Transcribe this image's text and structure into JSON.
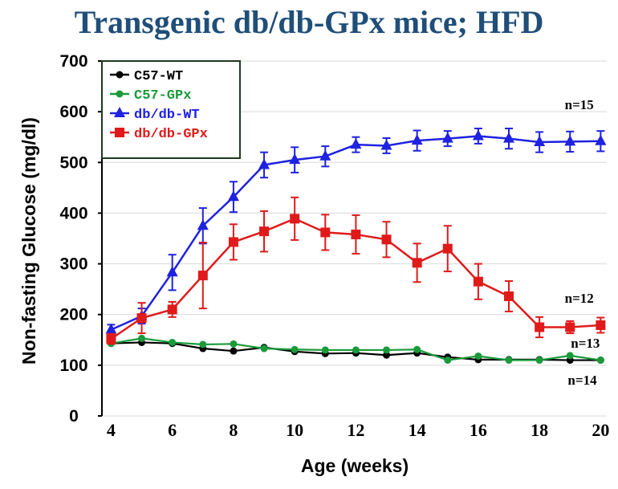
{
  "chart_data": {
    "type": "line",
    "title": "Transgenic db/db-GPx mice; HFD",
    "xlabel": "Age (weeks)",
    "ylabel": "Non-fasting Glucose (mg/dl)",
    "xlim": [
      3.7,
      20.2
    ],
    "ylim": [
      0,
      700
    ],
    "xticks": [
      4,
      6,
      8,
      10,
      12,
      14,
      16,
      18,
      20
    ],
    "yticks": [
      0,
      100,
      200,
      300,
      400,
      500,
      600,
      700
    ],
    "x": [
      4,
      5,
      6,
      7,
      8,
      9,
      10,
      11,
      12,
      13,
      14,
      15,
      16,
      17,
      18,
      19,
      20
    ],
    "legend": "top-left",
    "series": [
      {
        "name": "C57-WT",
        "color": "#000000",
        "marker": "circle",
        "values": [
          143,
          145,
          143,
          133,
          128,
          135,
          127,
          123,
          124,
          120,
          124,
          116,
          111,
          111,
          111,
          110,
          110
        ]
      },
      {
        "name": "C57-GPx",
        "color": "#1a9a3a",
        "marker": "circle",
        "values": [
          143,
          153,
          145,
          141,
          142,
          133,
          131,
          130,
          130,
          130,
          131,
          110,
          118,
          110,
          110,
          119,
          110
        ]
      },
      {
        "name": "db/db-WT",
        "color": "#1f22e0",
        "marker": "triangle",
        "values": [
          170,
          197,
          283,
          375,
          432,
          495,
          505,
          512,
          535,
          533,
          543,
          547,
          552,
          547,
          540,
          541,
          542
        ],
        "errors": [
          10,
          15,
          35,
          35,
          30,
          25,
          25,
          20,
          15,
          15,
          20,
          15,
          15,
          20,
          20,
          20,
          20
        ]
      },
      {
        "name": "db/db-GPx",
        "color": "#e01a1a",
        "marker": "square",
        "values": [
          152,
          193,
          210,
          277,
          343,
          364,
          389,
          362,
          358,
          348,
          302,
          330,
          265,
          236,
          175,
          175,
          179
        ],
        "errors": [
          10,
          30,
          15,
          65,
          35,
          40,
          42,
          35,
          38,
          35,
          38,
          45,
          35,
          30,
          20,
          12,
          15
        ]
      }
    ],
    "annotations": [
      {
        "text": "n=15",
        "x": 19.3,
        "y": 605
      },
      {
        "text": "n=12",
        "x": 19.3,
        "y": 223
      },
      {
        "text": "n=13",
        "x": 19.5,
        "y": 135
      },
      {
        "text": "n=14",
        "x": 19.4,
        "y": 62
      }
    ]
  }
}
